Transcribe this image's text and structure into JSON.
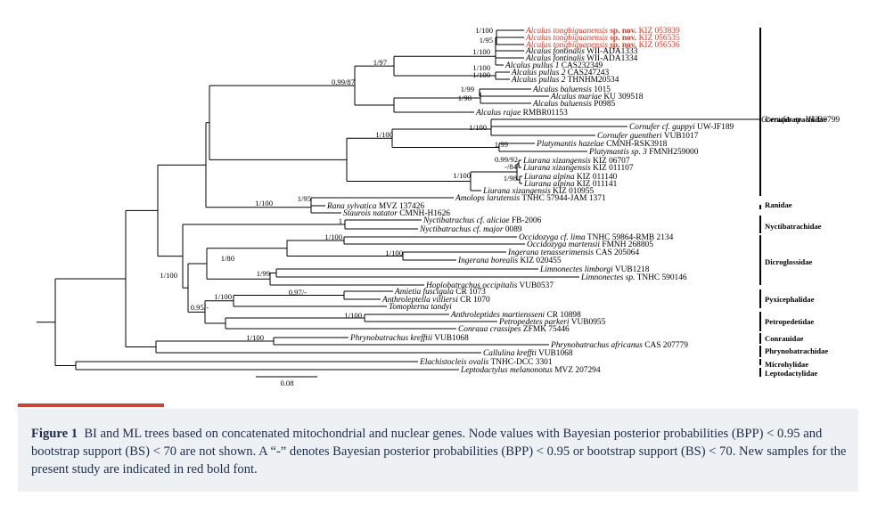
{
  "taxa": [
    {
      "genus": "Alcalus",
      "species": "tongbiguanensis",
      "suffix": "sp. nov.",
      "voucher": "KIZ 053839",
      "red": true
    },
    {
      "genus": "Alcalus",
      "species": "tongbiguanensis",
      "suffix": "sp. nov.",
      "voucher": "KIZ 056535",
      "red": true
    },
    {
      "genus": "Alcalus",
      "species": "tongbiguanensis",
      "suffix": "sp. nov.",
      "voucher": "KIZ 056536",
      "red": true
    },
    {
      "genus": "Alcalus",
      "species": "fontinalis",
      "voucher": "WII-ADA1333"
    },
    {
      "genus": "Alcalus",
      "species": "fontinalis",
      "voucher": "WII-ADA1334"
    },
    {
      "genus": "Alcalus",
      "species": "pullus 1",
      "voucher": "CAS232349"
    },
    {
      "genus": "Alcalus",
      "species": "pullus 2",
      "voucher": "CAS247243"
    },
    {
      "genus": "Alcalus",
      "species": "pullus 2",
      "voucher": "THNHM20534"
    },
    {
      "genus": "Alcalus",
      "species": "baluensis",
      "voucher": "1015"
    },
    {
      "genus": "Alcalus",
      "species": "mariae",
      "voucher": "KU 309518"
    },
    {
      "genus": "Alcalus",
      "species": "baluensis",
      "voucher": "P0985"
    },
    {
      "genus": "Alcalus",
      "species": "rajae",
      "voucher": "RMBR01153"
    },
    {
      "genus": "Cornufer",
      "species": "sp.",
      "voucher": "VUB0799"
    },
    {
      "genus": "Cornufer",
      "species": "cf. guppyi",
      "voucher": "UW-JF189"
    },
    {
      "genus": "Cornufer",
      "species": "guentheri",
      "voucher": "VUB1017"
    },
    {
      "genus": "Platymantis",
      "species": "hazelae",
      "voucher": "CMNH-RSK3918"
    },
    {
      "genus": "Platymantis",
      "species": "sp. 3",
      "voucher": "FMNH259000"
    },
    {
      "genus": "Liurana",
      "species": "xizangensis",
      "voucher": "KIZ 06707"
    },
    {
      "genus": "Liurana",
      "species": "xizangensis",
      "voucher": "KIZ 011107"
    },
    {
      "genus": "Liurana",
      "species": "alpina",
      "voucher": "KIZ 011140"
    },
    {
      "genus": "Liurana",
      "species": "alpina",
      "voucher": "KIZ 011141"
    },
    {
      "genus": "Liurana",
      "species": "xizangensis",
      "voucher": "KIZ 010955"
    },
    {
      "genus": "Amolops",
      "species": "larutensis",
      "voucher": "TNHC 57944-JAM 1371"
    },
    {
      "genus": "Rana",
      "species": "sylvatica",
      "voucher": "MVZ 137426"
    },
    {
      "genus": "Staurois",
      "species": "natator",
      "voucher": "CMNH-H1626"
    },
    {
      "genus": "Nyctibatrachus",
      "species": "cf. aliciae",
      "voucher": "FB-2006"
    },
    {
      "genus": "Nyctibatrachus",
      "species": "cf. major",
      "voucher": "0089"
    },
    {
      "genus": "Occidozyga",
      "species": "cf. lima",
      "voucher": "TNHC 59864-RMB 2134"
    },
    {
      "genus": "Occidozyga",
      "species": "martensii",
      "voucher": "FMNH 268805"
    },
    {
      "genus": "Ingerana",
      "species": "tenasserimensis",
      "voucher": "CAS 205064"
    },
    {
      "genus": "Ingerana",
      "species": "borealis",
      "voucher": "KIZ 020455"
    },
    {
      "genus": "Limnonectes",
      "species": "limborgi",
      "voucher": "VUB1218"
    },
    {
      "genus": "Limnonectes",
      "species": "sp.",
      "voucher": "TNHC 590146"
    },
    {
      "genus": "Hoplobatrachus",
      "species": "occipitalis",
      "voucher": "VUB0537"
    },
    {
      "genus": "Amietia",
      "species": "fuscigula",
      "voucher": "CR 1073"
    },
    {
      "genus": "Anthroleptella",
      "species": "villiersi",
      "voucher": "CR 1070"
    },
    {
      "genus": "Tomopterna",
      "species": "tandyi",
      "voucher": ""
    },
    {
      "genus": "Anthroleptides",
      "species": "martiensseni",
      "voucher": "CR 10898"
    },
    {
      "genus": "Petropedetes",
      "species": "parkeri",
      "voucher": "VUB0955"
    },
    {
      "genus": "Conraua",
      "species": "crassipes",
      "voucher": "ZFMK 75446"
    },
    {
      "genus": "Phrynobatrachus",
      "species": "krefftii",
      "voucher": "VUB1068"
    },
    {
      "genus": "Phrynobatrachus",
      "species": "africanus",
      "voucher": "CAS 207779"
    },
    {
      "genus": "Callulina",
      "species": "kreffti",
      "voucher": "VUB1068"
    },
    {
      "genus": "Elachistocleis",
      "species": "ovalis",
      "voucher": "TNHC-DCC 3301"
    },
    {
      "genus": "Leptodactylus",
      "species": "melanonotus",
      "voucher": "MVZ 207294"
    }
  ],
  "support_labels": [
    "1/100",
    "1/95",
    "1/100",
    "1/100",
    "1/97",
    "1/100",
    "1/99",
    "1/98",
    "0.99/87",
    "1/100",
    "1/100",
    "1/99",
    "0.99/92",
    "-/84",
    "1/98",
    "1/100",
    "1/95",
    "1/100",
    "1",
    "1/100",
    "1/100",
    "1/80",
    "1/99",
    "0.97/-",
    "1/100",
    "1/100",
    "0.95/-",
    "1/100",
    "1/100"
  ],
  "families": [
    "Ceratobatrachidae",
    "Ranidae",
    "Nyctibatrachidae",
    "Dicroglossidae",
    "Pyxicephalidae",
    "Petropedetidae",
    "Conrauidae",
    "Phrynobatrachidae",
    "Microhylidae",
    "Leptodactylidae"
  ],
  "scale_bar_label": "0.08",
  "colors": {
    "new_taxa": "#d23b2a",
    "branch": "#000000",
    "caption_text": "#1f2d49",
    "caption_bg": "#eef1f4",
    "accent": "#c8453c"
  },
  "caption": {
    "label": "Figure 1",
    "text": "BI and ML trees based on concatenated mitochondrial and nuclear genes. Node values with Bayesian posterior probabilities (BPP) < 0.95 and bootstrap support (BS) < 70 are not shown. A “-” denotes Bayesian posterior probabilities (BPP) < 0.95 or bootstrap support (BS) < 70. New samples for the present study are indicated in red bold font."
  }
}
